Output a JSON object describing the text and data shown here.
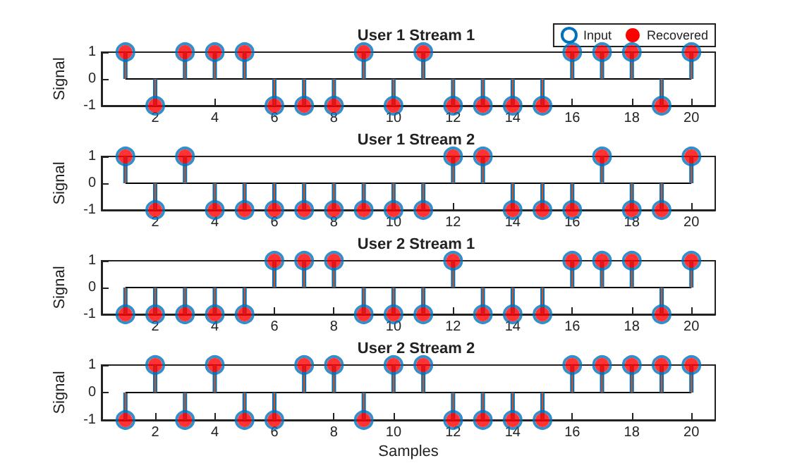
{
  "chart_data": [
    {
      "type": "lollipop",
      "title": "User 1 Stream 1",
      "ylabel": "Signal",
      "x": [
        1,
        2,
        3,
        4,
        5,
        6,
        7,
        8,
        9,
        10,
        11,
        12,
        13,
        14,
        15,
        16,
        17,
        18,
        19,
        20
      ],
      "xlim": [
        0.2,
        20.8
      ],
      "xticks": [
        2,
        4,
        6,
        8,
        10,
        12,
        14,
        16,
        18,
        20
      ],
      "ylim": [
        -1,
        1
      ],
      "yticks": [
        -1,
        0,
        1
      ],
      "marker": "circle",
      "legend": "top right",
      "series": [
        {
          "name": "Input",
          "color": "#0072bd",
          "values": [
            1,
            -1,
            1,
            1,
            1,
            -1,
            -1,
            -1,
            1,
            -1,
            1,
            -1,
            -1,
            -1,
            -1,
            1,
            1,
            1,
            -1,
            1
          ]
        },
        {
          "name": "Recovered",
          "color": "#ff0000",
          "values": [
            1,
            -1,
            1,
            1,
            1,
            -1,
            -1,
            -1,
            1,
            -1,
            1,
            -1,
            -1,
            -1,
            -1,
            1,
            1,
            1,
            -1,
            1
          ]
        }
      ]
    },
    {
      "type": "lollipop",
      "title": "User 1 Stream 2",
      "ylabel": "Signal",
      "x": [
        1,
        2,
        3,
        4,
        5,
        6,
        7,
        8,
        9,
        10,
        11,
        12,
        13,
        14,
        15,
        16,
        17,
        18,
        19,
        20
      ],
      "xlim": [
        0.2,
        20.8
      ],
      "xticks": [
        2,
        4,
        6,
        8,
        10,
        12,
        14,
        16,
        18,
        20
      ],
      "ylim": [
        -1,
        1
      ],
      "yticks": [
        -1,
        0,
        1
      ],
      "marker": "circle",
      "legend": false,
      "series": [
        {
          "color": "#0072bd",
          "values": [
            1,
            -1,
            1,
            -1,
            -1,
            -1,
            -1,
            -1,
            -1,
            -1,
            -1,
            1,
            1,
            -1,
            -1,
            -1,
            1,
            -1,
            -1,
            1
          ]
        },
        {
          "color": "#ff0000",
          "values": [
            1,
            -1,
            1,
            -1,
            -1,
            -1,
            -1,
            -1,
            -1,
            -1,
            -1,
            1,
            1,
            -1,
            -1,
            -1,
            1,
            -1,
            -1,
            1
          ]
        }
      ]
    },
    {
      "type": "lollipop",
      "title": "User 2 Stream 1",
      "ylabel": "Signal",
      "x": [
        1,
        2,
        3,
        4,
        5,
        6,
        7,
        8,
        9,
        10,
        11,
        12,
        13,
        14,
        15,
        16,
        17,
        18,
        19,
        20
      ],
      "xlim": [
        0.2,
        20.8
      ],
      "xticks": [
        2,
        4,
        6,
        8,
        10,
        12,
        14,
        16,
        18,
        20
      ],
      "ylim": [
        -1,
        1
      ],
      "yticks": [
        -1,
        0,
        1
      ],
      "marker": "circle",
      "legend": false,
      "series": [
        {
          "color": "#0072bd",
          "values": [
            -1,
            -1,
            -1,
            -1,
            -1,
            1,
            1,
            1,
            -1,
            -1,
            -1,
            1,
            -1,
            -1,
            -1,
            1,
            1,
            1,
            -1,
            1
          ]
        },
        {
          "color": "#ff0000",
          "values": [
            -1,
            -1,
            -1,
            -1,
            -1,
            1,
            1,
            1,
            -1,
            -1,
            -1,
            1,
            -1,
            -1,
            -1,
            1,
            1,
            1,
            -1,
            1
          ]
        }
      ]
    },
    {
      "type": "lollipop",
      "title": "User 2 Stream 2",
      "xlabel": "Samples",
      "ylabel": "Signal",
      "x": [
        1,
        2,
        3,
        4,
        5,
        6,
        7,
        8,
        9,
        10,
        11,
        12,
        13,
        14,
        15,
        16,
        17,
        18,
        19,
        20
      ],
      "xlim": [
        0.2,
        20.8
      ],
      "xticks": [
        2,
        4,
        6,
        8,
        10,
        12,
        14,
        16,
        18,
        20
      ],
      "ylim": [
        -1,
        1
      ],
      "yticks": [
        -1,
        0,
        1
      ],
      "marker": "circle",
      "legend": false,
      "series": [
        {
          "color": "#0072bd",
          "values": [
            -1,
            1,
            -1,
            1,
            -1,
            -1,
            1,
            1,
            -1,
            1,
            1,
            -1,
            -1,
            -1,
            -1,
            1,
            1,
            1,
            1,
            1
          ]
        },
        {
          "color": "#ff0000",
          "values": [
            -1,
            1,
            -1,
            1,
            -1,
            -1,
            1,
            1,
            -1,
            1,
            1,
            -1,
            -1,
            -1,
            -1,
            1,
            1,
            1,
            1,
            1
          ]
        }
      ]
    }
  ]
}
